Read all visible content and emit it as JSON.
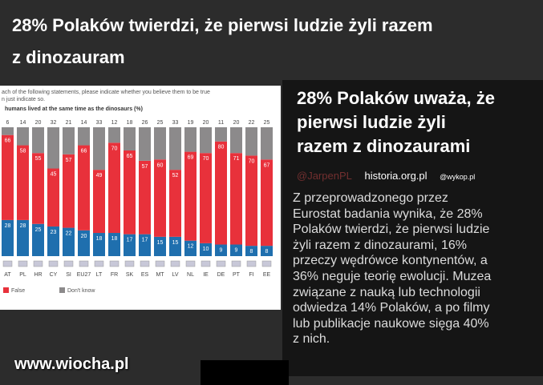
{
  "header": {
    "title_lines": [
      "28% Polaków twierdzi, że pierwsi ludzie żyli razem",
      "z dinozauram"
    ]
  },
  "chart_data": {
    "type": "stacked_bar",
    "question_lines": [
      "ach of the following statements, please indicate whether you believe them to be true",
      "n just indicate so."
    ],
    "title": "humans lived at the same time as the dinosaurs (%)",
    "categories": [
      "AT",
      "PL",
      "HR",
      "CY",
      "SI",
      "EU27",
      "LT",
      "FR",
      "SK",
      "ES",
      "MT",
      "LV",
      "NL",
      "IE",
      "DE",
      "PT",
      "FI",
      "EE"
    ],
    "series": [
      {
        "color": "#1f6fae",
        "values": [
          28,
          28,
          25,
          23,
          22,
          20,
          18,
          18,
          17,
          17,
          15,
          15,
          12,
          10,
          9,
          9,
          8,
          8
        ]
      },
      {
        "name": "False",
        "color": "#e8313b",
        "values": [
          66,
          58,
          55,
          45,
          57,
          66,
          49,
          70,
          65,
          57,
          60,
          52,
          69,
          70,
          80,
          71,
          70,
          67
        ]
      },
      {
        "name": "Don't know",
        "color": "#8c8a8b",
        "values": [
          6,
          14,
          20,
          32,
          21,
          14,
          33,
          12,
          18,
          26,
          25,
          33,
          19,
          20,
          11,
          20,
          22,
          25
        ]
      }
    ],
    "ylim": [
      0,
      100
    ]
  },
  "article": {
    "title_lines": [
      "28% Polaków uważa, że",
      "pierwsi ludzie żyli",
      "razem z dinozaurami"
    ],
    "handle": "@JarpenPL",
    "source": "historia.org.pl",
    "credit": "@wykop.pl",
    "body_lines": [
      "Z przeprowadzonego przez",
      "Eurostat badania wynika, że 28%",
      "Polaków twierdzi, że pierwsi ludzie",
      "żyli razem z dinozaurami, 16%",
      "przeczy wędrówce kontynentów, a",
      "36% neguje teorię ewolucji. Muzea",
      "związane z nauką lub technologii",
      "odwiedza 14% Polaków, a po filmy",
      "lub publikacje naukowe sięga 40%",
      "z nich."
    ]
  },
  "watermark": "www.wiocha.pl"
}
